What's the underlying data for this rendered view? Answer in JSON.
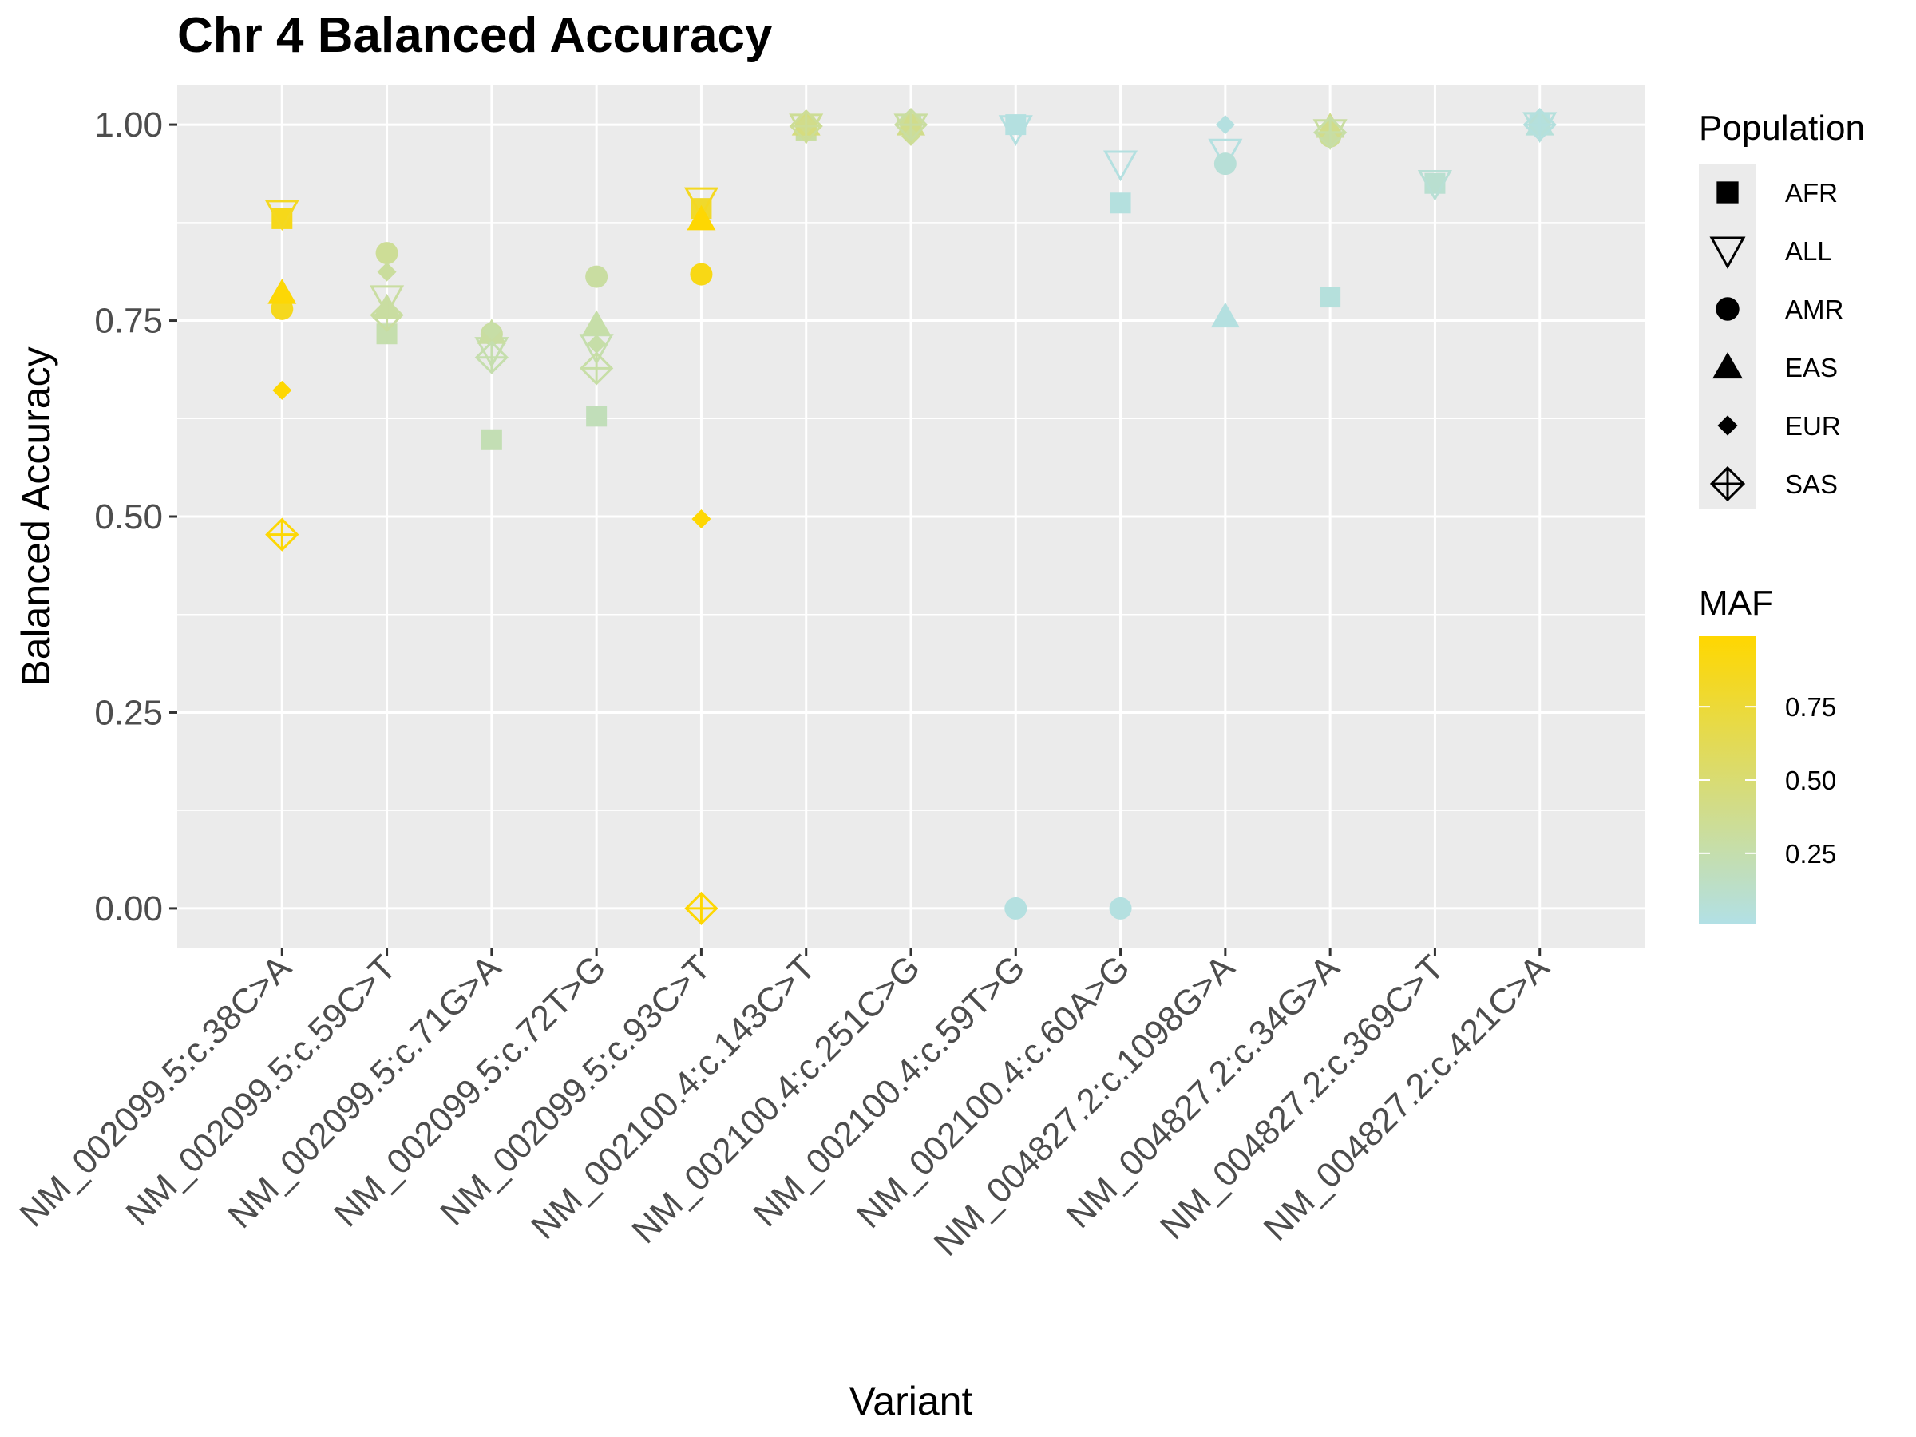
{
  "chart_data": {
    "type": "scatter",
    "title": "Chr 4 Balanced Accuracy",
    "xlabel": "Variant",
    "ylabel": "Balanced Accuracy",
    "ylim": [
      -0.05,
      1.05
    ],
    "y_ticks": [
      "0.00",
      "0.25",
      "0.50",
      "0.75",
      "1.00"
    ],
    "grid": true,
    "categories": [
      "NM_002099.5:c.38C>A",
      "NM_002099.5:c.59C>T",
      "NM_002099.5:c.71G>A",
      "NM_002099.5:c.72T>G",
      "NM_002099.5:c.93C>T",
      "NM_002100.4:c.143C>T",
      "NM_002100.4:c.251C>G",
      "NM_002100.4:c.59T>G",
      "NM_002100.4:c.60A>G",
      "NM_004827.2:c.1098G>A",
      "NM_004827.2:c.34G>A",
      "NM_004827.2:c.369C>T",
      "NM_004827.2:c.421C>A"
    ],
    "populations": [
      "AFR",
      "ALL",
      "AMR",
      "EAS",
      "EUR",
      "SAS"
    ],
    "legend_population": {
      "title": "Population",
      "entries": [
        {
          "label": "AFR",
          "shape": "square"
        },
        {
          "label": "ALL",
          "shape": "triangle-down-open"
        },
        {
          "label": "AMR",
          "shape": "circle"
        },
        {
          "label": "EAS",
          "shape": "triangle-up"
        },
        {
          "label": "EUR",
          "shape": "diamond"
        },
        {
          "label": "SAS",
          "shape": "diamond-plus-open"
        }
      ]
    },
    "legend_maf": {
      "title": "MAF",
      "range": [
        0.01,
        0.99
      ],
      "tick_values": [
        0.25,
        0.5,
        0.75
      ],
      "tick_labels": [
        "0.25",
        "0.50",
        "0.75"
      ],
      "color_low": "#b2e0e5",
      "color_high": "#ffd700"
    },
    "points": [
      {
        "variant": 0,
        "population": "AFR",
        "y": 0.88,
        "maf": 0.88
      },
      {
        "variant": 0,
        "population": "ALL",
        "y": 0.887,
        "maf": 0.85
      },
      {
        "variant": 0,
        "population": "AMR",
        "y": 0.765,
        "maf": 0.86
      },
      {
        "variant": 0,
        "population": "EAS",
        "y": 0.785,
        "maf": 0.97
      },
      {
        "variant": 0,
        "population": "EUR",
        "y": 0.661,
        "maf": 0.98
      },
      {
        "variant": 0,
        "population": "SAS",
        "y": 0.477,
        "maf": 0.97
      },
      {
        "variant": 1,
        "population": "AFR",
        "y": 0.733,
        "maf": 0.25
      },
      {
        "variant": 1,
        "population": "ALL",
        "y": 0.778,
        "maf": 0.3
      },
      {
        "variant": 1,
        "population": "AMR",
        "y": 0.836,
        "maf": 0.35
      },
      {
        "variant": 1,
        "population": "EAS",
        "y": 0.766,
        "maf": 0.3
      },
      {
        "variant": 1,
        "population": "EUR",
        "y": 0.812,
        "maf": 0.32
      },
      {
        "variant": 1,
        "population": "SAS",
        "y": 0.757,
        "maf": 0.3
      },
      {
        "variant": 2,
        "population": "AFR",
        "y": 0.598,
        "maf": 0.22
      },
      {
        "variant": 2,
        "population": "ALL",
        "y": 0.712,
        "maf": 0.25
      },
      {
        "variant": 2,
        "population": "AMR",
        "y": 0.733,
        "maf": 0.3
      },
      {
        "variant": 2,
        "population": "EAS",
        "y": 0.734,
        "maf": 0.3
      },
      {
        "variant": 2,
        "population": "EUR",
        "y": 0.737,
        "maf": 0.28
      },
      {
        "variant": 2,
        "population": "SAS",
        "y": 0.703,
        "maf": 0.25
      },
      {
        "variant": 3,
        "population": "AFR",
        "y": 0.628,
        "maf": 0.2
      },
      {
        "variant": 3,
        "population": "ALL",
        "y": 0.716,
        "maf": 0.25
      },
      {
        "variant": 3,
        "population": "AMR",
        "y": 0.806,
        "maf": 0.3
      },
      {
        "variant": 3,
        "population": "EAS",
        "y": 0.745,
        "maf": 0.27
      },
      {
        "variant": 3,
        "population": "EUR",
        "y": 0.72,
        "maf": 0.27
      },
      {
        "variant": 3,
        "population": "SAS",
        "y": 0.689,
        "maf": 0.28
      },
      {
        "variant": 4,
        "population": "AFR",
        "y": 0.893,
        "maf": 0.8
      },
      {
        "variant": 4,
        "population": "ALL",
        "y": 0.903,
        "maf": 0.85
      },
      {
        "variant": 4,
        "population": "AMR",
        "y": 0.809,
        "maf": 0.9
      },
      {
        "variant": 4,
        "population": "EAS",
        "y": 0.879,
        "maf": 0.98
      },
      {
        "variant": 4,
        "population": "EUR",
        "y": 0.497,
        "maf": 0.98
      },
      {
        "variant": 4,
        "population": "SAS",
        "y": 0.0,
        "maf": 0.98
      },
      {
        "variant": 5,
        "population": "AFR",
        "y": 0.993,
        "maf": 0.3
      },
      {
        "variant": 5,
        "population": "ALL",
        "y": 0.997,
        "maf": 0.35
      },
      {
        "variant": 5,
        "population": "AMR",
        "y": 1.0,
        "maf": 0.4
      },
      {
        "variant": 5,
        "population": "EAS",
        "y": 1.0,
        "maf": 0.45
      },
      {
        "variant": 5,
        "population": "EUR",
        "y": 1.0,
        "maf": 0.4
      },
      {
        "variant": 5,
        "population": "SAS",
        "y": 0.998,
        "maf": 0.35
      },
      {
        "variant": 6,
        "population": "AFR",
        "y": 1.0,
        "maf": 0.15
      },
      {
        "variant": 6,
        "population": "ALL",
        "y": 0.997,
        "maf": 0.3
      },
      {
        "variant": 6,
        "population": "AMR",
        "y": 1.0,
        "maf": 0.35
      },
      {
        "variant": 6,
        "population": "EAS",
        "y": 1.0,
        "maf": 0.4
      },
      {
        "variant": 6,
        "population": "EUR",
        "y": 0.985,
        "maf": 0.35
      },
      {
        "variant": 6,
        "population": "SAS",
        "y": 1.0,
        "maf": 0.3
      },
      {
        "variant": 7,
        "population": "AFR",
        "y": 1.0,
        "maf": 0.03
      },
      {
        "variant": 7,
        "population": "ALL",
        "y": 0.995,
        "maf": 0.03
      },
      {
        "variant": 7,
        "population": "AMR",
        "y": 0.0,
        "maf": 0.03
      },
      {
        "variant": 8,
        "population": "AFR",
        "y": 0.9,
        "maf": 0.04
      },
      {
        "variant": 8,
        "population": "ALL",
        "y": 0.95,
        "maf": 0.03
      },
      {
        "variant": 8,
        "population": "AMR",
        "y": 0.0,
        "maf": 0.03
      },
      {
        "variant": 9,
        "population": "ALL",
        "y": 0.965,
        "maf": 0.03
      },
      {
        "variant": 9,
        "population": "AMR",
        "y": 0.95,
        "maf": 0.07
      },
      {
        "variant": 9,
        "population": "EAS",
        "y": 0.755,
        "maf": 0.03
      },
      {
        "variant": 9,
        "population": "EUR",
        "y": 1.0,
        "maf": 0.03
      },
      {
        "variant": 10,
        "population": "AFR",
        "y": 0.78,
        "maf": 0.05
      },
      {
        "variant": 10,
        "population": "ALL",
        "y": 0.99,
        "maf": 0.3
      },
      {
        "variant": 10,
        "population": "AMR",
        "y": 0.985,
        "maf": 0.35
      },
      {
        "variant": 10,
        "population": "EAS",
        "y": 0.997,
        "maf": 0.4
      },
      {
        "variant": 10,
        "population": "EUR",
        "y": 0.982,
        "maf": 0.3
      },
      {
        "variant": 10,
        "population": "SAS",
        "y": 0.99,
        "maf": 0.28
      },
      {
        "variant": 11,
        "population": "AFR",
        "y": 0.925,
        "maf": 0.1
      },
      {
        "variant": 11,
        "population": "ALL",
        "y": 0.925,
        "maf": 0.08
      },
      {
        "variant": 12,
        "population": "AFR",
        "y": 1.0,
        "maf": 0.03
      },
      {
        "variant": 12,
        "population": "ALL",
        "y": 0.999,
        "maf": 0.05
      },
      {
        "variant": 12,
        "population": "AMR",
        "y": 1.0,
        "maf": 0.08
      },
      {
        "variant": 12,
        "population": "EAS",
        "y": 1.0,
        "maf": 0.06
      },
      {
        "variant": 12,
        "population": "EUR",
        "y": 1.0,
        "maf": 0.05
      },
      {
        "variant": 12,
        "population": "SAS",
        "y": 1.0,
        "maf": 0.04
      }
    ]
  }
}
